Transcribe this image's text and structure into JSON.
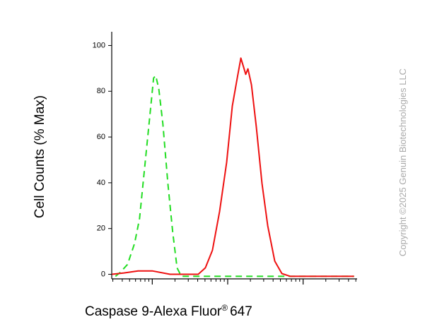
{
  "chart_data": {
    "type": "line",
    "y_label": "Cell Counts (% Max)",
    "x_label": [
      "Caspase 9-Alexa Fluor",
      "®",
      "647"
    ],
    "copyright": "Copyright ©2025 Genuin Biotechnologies LLC",
    "x_scale": "log",
    "xlim": [
      29,
      52000
    ],
    "xticks": [
      100,
      1000,
      10000
    ],
    "ylim": [
      -2,
      106
    ],
    "yticks": [
      0,
      20,
      40,
      60,
      80,
      100
    ],
    "series": [
      {
        "color": "#22dd22",
        "dashed": true,
        "x": [
          32.5,
          37.8,
          46.9,
          58.2,
          67.8,
          80.5,
          93.7,
          104,
          111,
          122,
          138,
          161,
          187,
          213,
          243,
          1853,
          47400
        ],
        "y": [
          -0.9,
          0.9,
          4.3,
          13.5,
          24.3,
          48.9,
          70.5,
          85.8,
          86.8,
          81.2,
          65.8,
          39.7,
          18.2,
          2.8,
          -0.9,
          -0.9,
          -0.9
        ]
      },
      {
        "color": "#ee1111",
        "dashed": false,
        "x": [
          29.2,
          42.1,
          64.9,
          100,
          172,
          407,
          506,
          628,
          780,
          968,
          1151,
          1340,
          1493,
          1627,
          1734,
          1853,
          2064,
          2400,
          2853,
          3393,
          4208,
          5228,
          6776,
          47400
        ],
        "y": [
          0,
          0.6,
          1.5,
          1.5,
          0,
          0,
          2.8,
          10.5,
          27.4,
          48.9,
          73.5,
          85.8,
          94.5,
          90.5,
          87.4,
          89.8,
          82.8,
          64.3,
          39.7,
          21.2,
          5.8,
          0.3,
          -0.9,
          -0.9
        ]
      }
    ]
  }
}
